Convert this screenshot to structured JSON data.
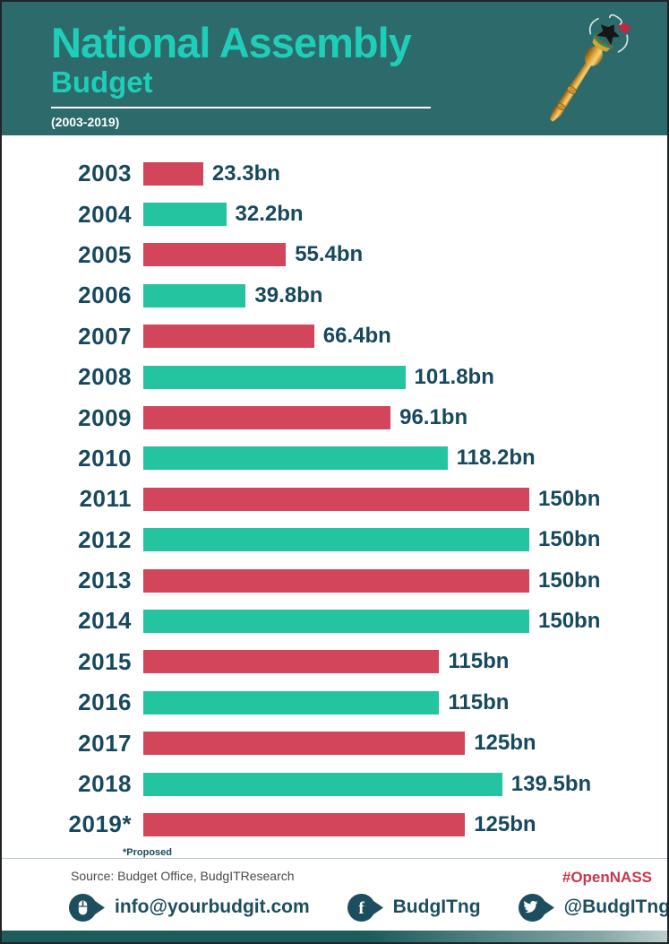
{
  "header": {
    "title": "National Assembly",
    "subtitle": "Budget",
    "period": "(2003-2019)",
    "mace_icon": "nigerian-mace-icon"
  },
  "chart_data": {
    "type": "bar",
    "orientation": "horizontal",
    "title": "National Assembly Budget (2003-2019)",
    "categories": [
      "2003",
      "2004",
      "2005",
      "2006",
      "2007",
      "2008",
      "2009",
      "2010",
      "2011",
      "2012",
      "2013",
      "2014",
      "2015",
      "2016",
      "2017",
      "2018",
      "2019*"
    ],
    "values": [
      23.3,
      32.2,
      55.4,
      39.8,
      66.4,
      101.8,
      96.1,
      118.2,
      150,
      150,
      150,
      150,
      115,
      115,
      125,
      139.5,
      125
    ],
    "value_labels": [
      "23.3bn",
      "32.2bn",
      "55.4bn",
      "39.8bn",
      "66.4bn",
      "101.8bn",
      "96.1bn",
      "118.2bn",
      "150bn",
      "150bn",
      "150bn",
      "150bn",
      "115bn",
      "115bn",
      "125bn",
      "139.5bn",
      "125bn"
    ],
    "unit": "bn",
    "xlim": [
      0,
      150
    ],
    "grid": false,
    "legend": false,
    "alternating_colors": [
      "#d2455b",
      "#25c4a0"
    ],
    "note": "*Proposed"
  },
  "footer": {
    "source": "Source: Budget Office, BudgITResearch",
    "hashtag": "#OpenNASS",
    "contacts": [
      {
        "icon": "mouse-icon",
        "label": "info@yourbudgit.com"
      },
      {
        "icon": "facebook-icon",
        "label": "BudgITng"
      },
      {
        "icon": "twitter-icon",
        "label": "@BudgITng"
      }
    ]
  },
  "colors": {
    "header_background": "#2c6a6b",
    "title_accent": "#1fceb9",
    "text_dark": "#17495e",
    "bar_red": "#d2455b",
    "bar_green": "#25c4a0",
    "hashtag_red": "#c9374c",
    "icon_teal": "#1d4e5f"
  }
}
